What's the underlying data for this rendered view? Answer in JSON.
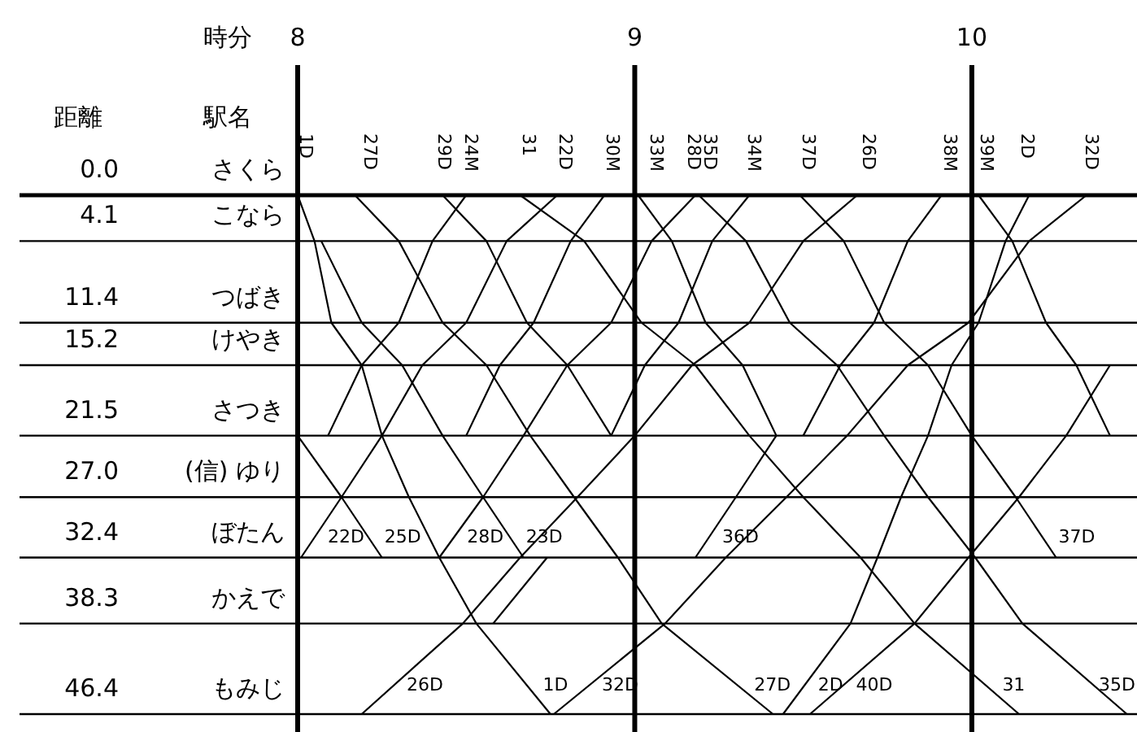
{
  "chart_data": {
    "type": "line",
    "xlabel": "時分",
    "ylabel": "距離",
    "xlim": [
      8,
      10.49
    ],
    "xticks": [
      8,
      9,
      10
    ],
    "annotations": [
      "駅名",
      {
        "text": "1D",
        "x": 8.0,
        "y": 0
      },
      {
        "text": "27D",
        "x": 8.19,
        "y": 0
      },
      {
        "text": "29D",
        "x": 8.41,
        "y": 0
      },
      {
        "text": "24M",
        "x": 8.49,
        "y": 0
      },
      {
        "text": "31",
        "x": 8.66,
        "y": 0
      },
      {
        "text": "22D",
        "x": 8.77,
        "y": 0
      },
      {
        "text": "30M",
        "x": 8.91,
        "y": 0
      },
      {
        "text": "33M",
        "x": 9.04,
        "y": 0
      },
      {
        "text": "28D",
        "x": 9.15,
        "y": 0
      },
      {
        "text": "35D",
        "x": 9.2,
        "y": 0
      },
      {
        "text": "34M",
        "x": 9.33,
        "y": 0
      },
      {
        "text": "37D",
        "x": 9.49,
        "y": 0
      },
      {
        "text": "26D",
        "x": 9.67,
        "y": 0
      },
      {
        "text": "38M",
        "x": 9.91,
        "y": 0
      },
      {
        "text": "39M",
        "x": 10.02,
        "y": 0
      },
      {
        "text": "2D",
        "x": 10.14,
        "y": 0
      },
      {
        "text": "32D",
        "x": 10.33,
        "y": 0
      },
      "さくら",
      "こなら",
      "つばき",
      "けやき",
      "さつき",
      "(信) ゆり",
      "ぼたん",
      "かえで",
      "もみじ"
    ],
    "ylim": [
      46.4,
      0
    ],
    "yticks": [
      {
        "value": 0,
        "label": "0.0"
      },
      {
        "value": 4.1,
        "label": "4.1"
      },
      {
        "value": 11.4,
        "label": "11.4"
      },
      {
        "value": 15.2,
        "label": "15.2"
      },
      {
        "value": 21.5,
        "label": "21.5"
      },
      {
        "value": 27.0,
        "label": "27.0"
      },
      {
        "value": 32.4,
        "label": "32.4"
      },
      {
        "value": 38.3,
        "label": "38.3"
      },
      {
        "value": 46.4,
        "label": "46.4"
      }
    ],
    "grid": true,
    "marker": "none",
    "line_style": "solid",
    "series": [
      {
        "name": "1D",
        "color": "#000000",
        "x": [
          8.0,
          8.05,
          8.1,
          8.19,
          8.25,
          8.33,
          8.42,
          8.53,
          8.75
        ],
        "values": [
          0,
          4.1,
          11.4,
          15.2,
          21.5,
          27.0,
          32.4,
          38.3,
          46.4
        ]
      },
      {
        "name": "27D",
        "color": "#000000",
        "x": [
          8.17,
          8.3,
          8.43,
          8.56,
          8.69,
          8.82,
          8.95,
          9.08,
          9.41
        ],
        "values": [
          0,
          4.1,
          11.4,
          15.2,
          21.5,
          27.0,
          32.4,
          38.3,
          46.4
        ]
      },
      {
        "color": "#000000",
        "x": [
          8.43,
          8.56,
          8.68,
          8.8,
          8.93
        ],
        "values": [
          0,
          4.1,
          11.4,
          15.2,
          21.5
        ]
      },
      {
        "color": "#000000",
        "x": [
          8.09,
          8.19,
          8.3,
          8.4,
          8.5
        ],
        "values": [
          21.5,
          15.2,
          11.4,
          4.1,
          0
        ]
      },
      {
        "name": "31",
        "color": "#000000",
        "x": [
          8.66,
          8.85,
          9.02,
          9.18,
          9.34,
          9.5,
          9.67,
          9.83,
          10.14
        ],
        "values": [
          0,
          4.1,
          11.4,
          15.2,
          21.5,
          27.0,
          32.4,
          38.3,
          46.4
        ]
      },
      {
        "name": "22D",
        "color": "#000000",
        "x": [
          8.01,
          8.13,
          8.25,
          8.37,
          8.5,
          8.62,
          8.77
        ],
        "values": [
          32.4,
          27.0,
          21.5,
          15.2,
          11.4,
          4.1,
          0
        ]
      },
      {
        "name": "25D",
        "color": "#000000",
        "x": [
          8.0,
          8.13,
          8.25
        ],
        "values": [
          21.5,
          27.0,
          32.4
        ]
      },
      {
        "color": "#000000",
        "x": [
          8.5,
          8.6,
          8.7,
          8.81,
          8.91
        ],
        "values": [
          21.5,
          15.2,
          11.4,
          4.1,
          0
        ]
      },
      {
        "color": "#000000",
        "x": [
          9.01,
          9.11,
          9.21,
          9.32,
          9.42
        ],
        "values": [
          0,
          4.1,
          11.4,
          15.2,
          21.5
        ]
      },
      {
        "name": "28D",
        "color": "#000000",
        "x": [
          8.42,
          8.55,
          8.67,
          8.8,
          8.93,
          9.05,
          9.18
        ],
        "values": [
          32.4,
          27.0,
          21.5,
          15.2,
          11.4,
          4.1,
          0
        ]
      },
      {
        "name": "23D",
        "color": "#000000",
        "x": [
          8.07,
          8.19,
          8.31,
          8.43,
          8.55,
          8.67
        ],
        "values": [
          4.1,
          11.4,
          15.2,
          21.5,
          27.0,
          32.4
        ]
      },
      {
        "name": "35D",
        "color": "#000000",
        "x": [
          9.19,
          9.33,
          9.46,
          9.6,
          9.74,
          9.87,
          10.01,
          10.15,
          10.46
        ],
        "values": [
          0,
          4.1,
          11.4,
          15.2,
          21.5,
          27.0,
          32.4,
          38.3,
          46.4
        ]
      },
      {
        "color": "#000000",
        "x": [
          8.93,
          9.03,
          9.13,
          9.23,
          9.34
        ],
        "values": [
          21.5,
          15.2,
          11.4,
          4.1,
          0
        ]
      },
      {
        "name": "36D",
        "color": "#000000",
        "x": [
          9.18,
          9.3,
          9.42
        ],
        "values": [
          32.4,
          27.0,
          21.5
        ]
      },
      {
        "name": "37D",
        "color": "#000000",
        "x": [
          9.49,
          9.62,
          9.74,
          9.87,
          10.0,
          10.13,
          10.25
        ],
        "values": [
          0,
          4.1,
          11.4,
          15.2,
          21.5,
          27.0,
          32.4
        ]
      },
      {
        "name": "26D",
        "color": "#000000",
        "x": [
          8.19,
          8.49,
          8.66,
          8.83,
          9.0,
          9.17,
          9.34,
          9.5,
          9.66
        ],
        "values": [
          46.4,
          38.3,
          32.4,
          27.0,
          21.5,
          15.2,
          11.4,
          4.1,
          0
        ]
      },
      {
        "color": "#000000",
        "x": [
          9.5,
          9.61,
          9.71,
          9.81,
          9.91
        ],
        "values": [
          21.5,
          15.2,
          11.4,
          4.1,
          0
        ]
      },
      {
        "color": "#000000",
        "x": [
          10.02,
          10.12,
          10.22,
          10.31,
          10.41
        ],
        "values": [
          0,
          4.1,
          11.4,
          15.2,
          21.5
        ]
      },
      {
        "name": "2D",
        "color": "#000000",
        "x": [
          9.44,
          9.64,
          9.72,
          9.79,
          9.87,
          9.94,
          10.02,
          10.1,
          10.17
        ],
        "values": [
          46.4,
          38.3,
          32.4,
          27.0,
          21.5,
          15.2,
          11.4,
          4.1,
          0
        ]
      },
      {
        "name": "32D",
        "color": "#000000",
        "x": [
          8.76,
          9.09,
          9.27,
          9.45,
          9.63,
          9.81,
          9.99,
          10.17,
          10.34
        ],
        "values": [
          46.4,
          38.3,
          32.4,
          27.0,
          21.5,
          15.2,
          11.4,
          4.1,
          0
        ]
      },
      {
        "name": "40D",
        "color": "#000000",
        "x": [
          9.52,
          9.83,
          9.99,
          10.14,
          10.28,
          10.41
        ],
        "values": [
          46.4,
          38.3,
          32.4,
          27.0,
          21.5,
          15.2
        ]
      },
      {
        "color": "#000000",
        "x": [
          8.58,
          8.74
        ],
        "values": [
          38.3,
          32.4
        ]
      }
    ]
  }
}
